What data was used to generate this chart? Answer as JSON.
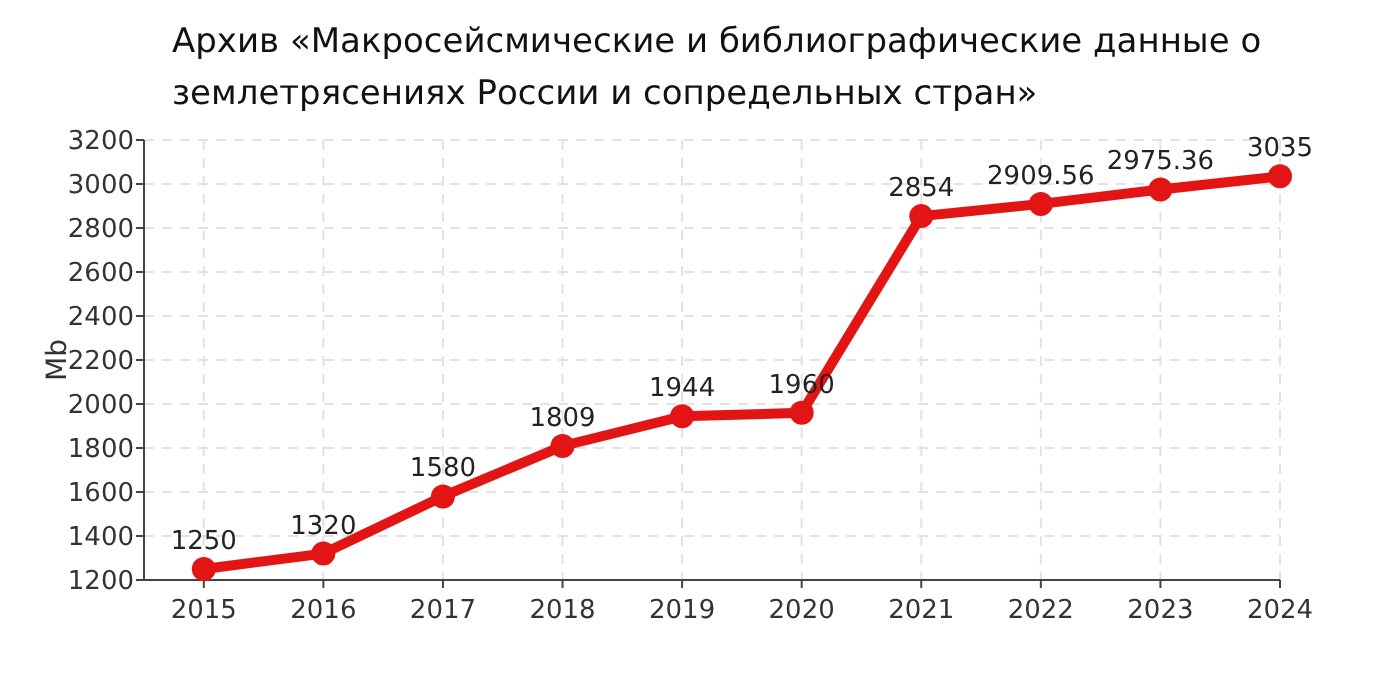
{
  "chart_data": {
    "type": "line",
    "title": "Архив «Макросейсмические и библиографические данные о землетрясениях России и сопредельных стран»",
    "ylabel": "Mb",
    "x": [
      2015,
      2016,
      2017,
      2018,
      2019,
      2020,
      2021,
      2022,
      2023,
      2024
    ],
    "series": [
      {
        "color": "#e31414",
        "values": [
          1250,
          1320,
          1580,
          1809,
          1944,
          1960,
          2854,
          2909.56,
          2975.36,
          3035
        ]
      }
    ],
    "xlim": [
      2014.5,
      2024
    ],
    "xticks": [
      2015,
      2016,
      2017,
      2018,
      2019,
      2020,
      2021,
      2022,
      2023,
      2024
    ],
    "ylim": [
      1200,
      3200
    ],
    "yticks": [
      1200,
      1400,
      1600,
      1800,
      2000,
      2200,
      2400,
      2600,
      2800,
      3000,
      3200
    ],
    "grid": true,
    "marker": "circle",
    "line_style": "solid",
    "data_labels": true
  }
}
